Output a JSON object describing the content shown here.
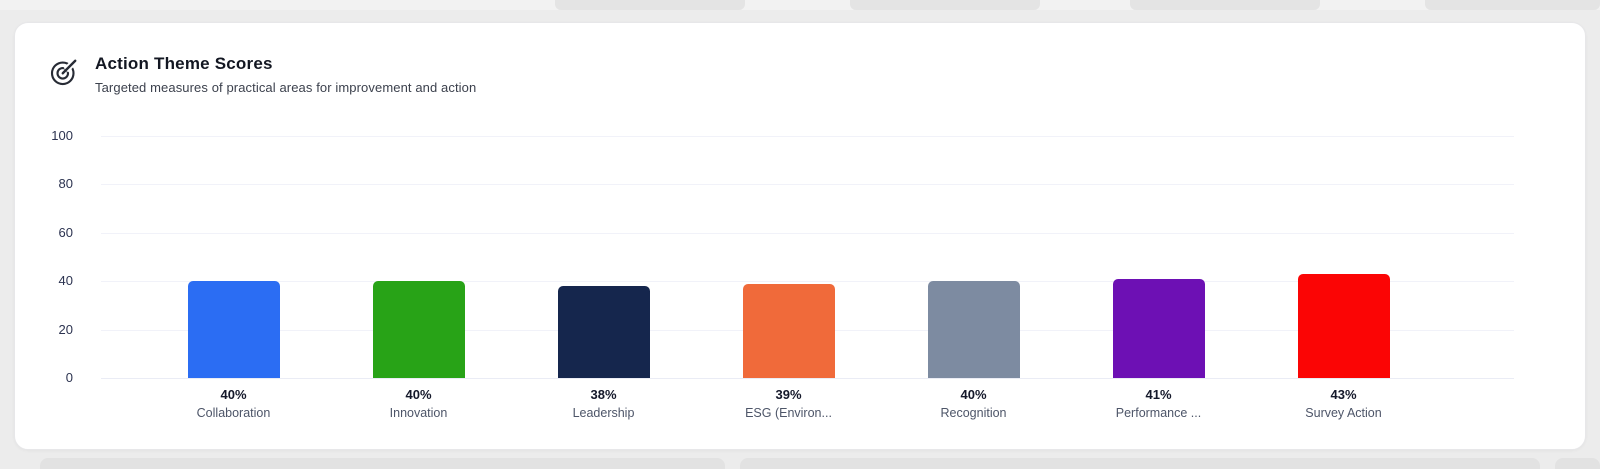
{
  "card": {
    "title": "Action Theme Scores",
    "subtitle": "Targeted measures of practical areas for improvement and action",
    "icon": "target-goal-icon"
  },
  "chart_data": {
    "type": "bar",
    "title": "Action Theme Scores",
    "subtitle": "Targeted measures of practical areas for improvement and action",
    "categories": [
      "Collaboration",
      "Innovation",
      "Leadership",
      "ESG (Environ...",
      "Recognition",
      "Performance ...",
      "Survey Action"
    ],
    "values": [
      40,
      40,
      38,
      39,
      40,
      41,
      43
    ],
    "value_labels": [
      "40%",
      "40%",
      "38%",
      "39%",
      "40%",
      "41%",
      "43%"
    ],
    "bar_colors": [
      "#2b6df3",
      "#28a317",
      "#15264d",
      "#f06a3a",
      "#7d8ba1",
      "#6d10b4",
      "#fb0505"
    ],
    "y_ticks": [
      0,
      20,
      40,
      60,
      80,
      100
    ],
    "ylim": [
      0,
      100
    ],
    "grid": true,
    "legend": false,
    "xlabel": "",
    "ylabel": ""
  }
}
